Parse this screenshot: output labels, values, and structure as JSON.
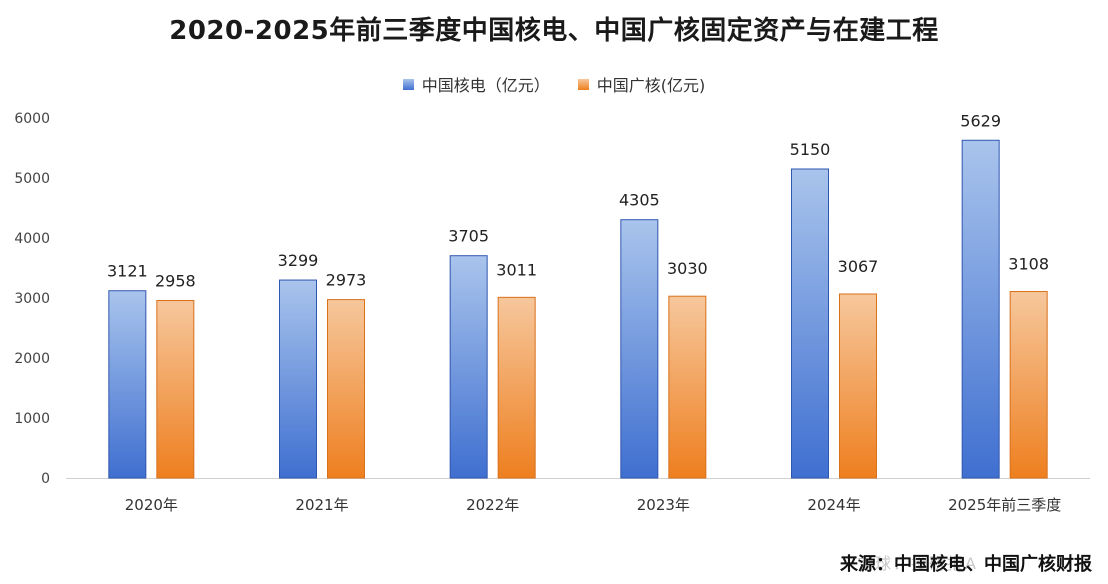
{
  "chart_data": {
    "type": "bar",
    "title": "2020-2025年前三季度中国核电、中国广核固定资产与在建工程",
    "xlabel": "",
    "ylabel": "",
    "categories": [
      "2020年",
      "2021年",
      "2022年",
      "2023年",
      "2024年",
      "2025年前三季度"
    ],
    "series": [
      {
        "name": "中国核电（亿元）",
        "values": [
          3121,
          3299,
          3705,
          4305,
          5150,
          5629
        ],
        "color_top": "#a9c4ec",
        "color_bottom": "#3f6fd0",
        "edge": "#2f57b0"
      },
      {
        "name": "中国广核(亿元)",
        "values": [
          2958,
          2973,
          3011,
          3030,
          3067,
          3108
        ],
        "color_top": "#f6c79c",
        "color_bottom": "#ee7f1f",
        "edge": "#d9701a"
      }
    ],
    "ylim": [
      0,
      6000
    ],
    "yticks": [
      0,
      1000,
      2000,
      3000,
      4000,
      5000,
      6000
    ],
    "grid": false,
    "legend_position": "top-center"
  },
  "source": "来源：中国核电、中国广核财报"
}
